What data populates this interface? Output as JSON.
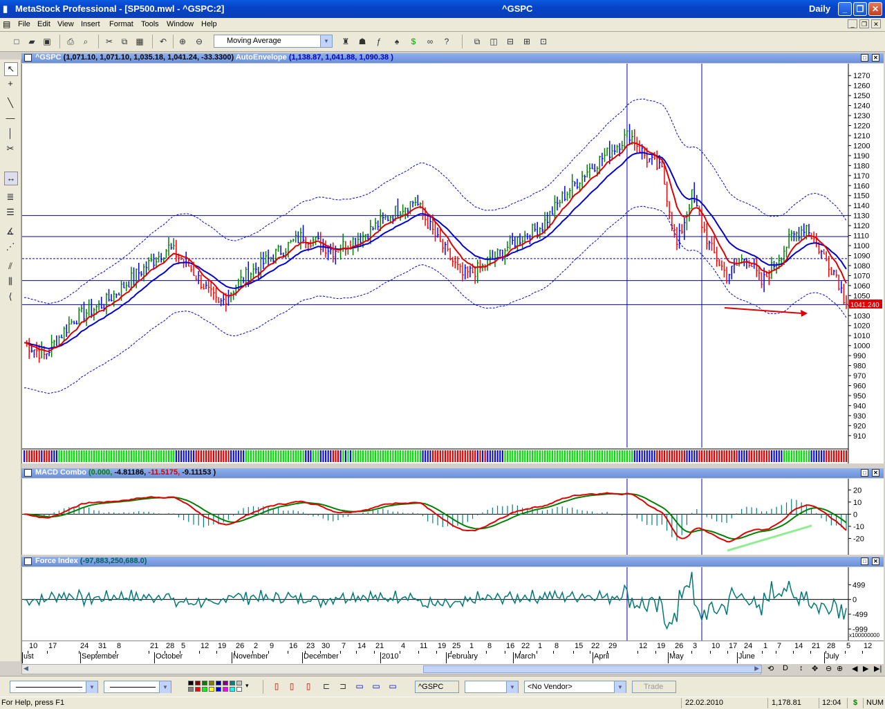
{
  "window": {
    "app_title": "MetaStock Professional - [SP500.mwl - ^GSPC:2]",
    "center_title": "^GSPC",
    "period": "Daily",
    "minimize": "_",
    "restore": "❐",
    "close": "✕"
  },
  "menu": [
    "File",
    "Edit",
    "View",
    "Insert",
    "Format",
    "Tools",
    "Window",
    "Help"
  ],
  "toolbar": {
    "indicator_select": "Moving Average"
  },
  "price_pane": {
    "symbol": "^GSPC",
    "ohlc": "(1,071.10, 1,071.10, 1,035.18, 1,041.24, -33.3300)",
    "overlay_name": "AutoEnvelope",
    "overlay_values": "(1,138.87, 1,041.88, 1,090.38 )",
    "last_price_label": "1041.240",
    "y_labels": [
      "1270",
      "1260",
      "1250",
      "1240",
      "1230",
      "1220",
      "1210",
      "1200",
      "1190",
      "1180",
      "1170",
      "1160",
      "1150",
      "1140",
      "1130",
      "1120",
      "1110",
      "1100",
      "1090",
      "1080",
      "1070",
      "1060",
      "1050",
      "1040",
      "1030",
      "1020",
      "1010",
      "1000",
      "990",
      "980",
      "970",
      "960",
      "950",
      "940",
      "930",
      "920",
      "910"
    ]
  },
  "macd_pane": {
    "name": "MACD Combo",
    "values_0": "(0.000,",
    "values_1": "-4.81186,",
    "values_2": "-11.5175,",
    "values_3": "-9.11153",
    "values_4": ")",
    "y_labels": [
      "20",
      "10",
      "0",
      "-10",
      "-20"
    ]
  },
  "force_pane": {
    "name": "Force Index",
    "values": "(-97,883,250,688.0)",
    "y_labels": [
      "499",
      "0",
      "-499",
      "-999"
    ],
    "multiplier": "x100000000"
  },
  "x_axis": {
    "days": [
      "10",
      "17",
      "24",
      "31",
      "8",
      "21",
      "28",
      "5",
      "12",
      "19",
      "26",
      "2",
      "9",
      "16",
      "23",
      "30",
      "7",
      "14",
      "21",
      "4",
      "11",
      "19",
      "25",
      "1",
      "8",
      "16",
      "22",
      "1",
      "8",
      "15",
      "22",
      "29",
      "12",
      "19",
      "26",
      "3",
      "10",
      "17",
      "24",
      "1",
      "7",
      "14",
      "21",
      "28",
      "5",
      "12"
    ],
    "months": [
      "ust",
      "September",
      "October",
      "November",
      "December",
      "2010",
      "February",
      "March",
      "April",
      "May",
      "June",
      "July"
    ]
  },
  "bottombar": {
    "symbol": "^GSPC",
    "vendor": "<No Vendor>",
    "trade": "Trade"
  },
  "status": {
    "help": "For Help, press F1",
    "date": "22.02.2010",
    "price": "1,178.81",
    "time": "12:04",
    "dollar": "$",
    "num": "NUM"
  },
  "colors": {
    "up_bar": "#008000",
    "down_bar": "#ff0000",
    "neutral_bar": "#0000ff",
    "ma_fast": "#e00000",
    "ma_slow": "#0000d0",
    "envelope": "#0000d0",
    "force": "#007878",
    "hist": "#008080"
  }
}
